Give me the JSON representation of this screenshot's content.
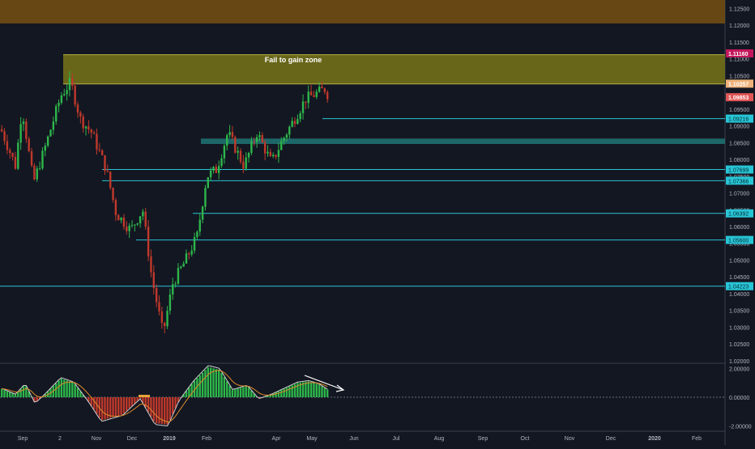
{
  "theme": {
    "background": "#131722",
    "up_color": "#2db74a",
    "down_color": "#c0392b",
    "zone_top_color": "#6b4a14",
    "zone_fail_color": "#6d6a19",
    "support_band_color": "#1d6b6e",
    "hline_color": "#27c5d6",
    "macd_line_color": "#d0d0d0",
    "signal_line_color": "#e08a2a"
  },
  "chart_data": [
    {
      "type": "candlestick",
      "title": "",
      "x_ticks": [
        "Sep",
        "2",
        "Nov",
        "Dec",
        "2019",
        "Feb",
        "Apr",
        "May",
        "Jun",
        "Jul",
        "Aug",
        "Sep",
        "Oct",
        "Nov",
        "Dec",
        "2020",
        "Feb"
      ],
      "y_ticks": [
        "1.12500",
        "1.12000",
        "1.11500",
        "1.11000",
        "1.10500",
        "1.09500",
        "1.09000",
        "1.08500",
        "1.08000",
        "1.07500",
        "1.07000",
        "1.06500",
        "1.06000",
        "1.05500",
        "1.05000",
        "1.04500",
        "1.04000",
        "1.03500",
        "1.03000",
        "1.02500",
        "1.02000"
      ],
      "ylim": [
        1.0195,
        1.1275
      ],
      "zones": [
        {
          "id": "top",
          "y_from": 1.1205,
          "y_to": 1.1275,
          "label": ""
        },
        {
          "id": "fail",
          "y_from": 1.1025,
          "y_to": 1.1112,
          "label": "Fail to gain zone"
        },
        {
          "id": "support",
          "y_from": 1.0846,
          "y_to": 1.0862,
          "label": ""
        }
      ],
      "levels": [
        {
          "value": 1.09216,
          "label": "1.09216"
        },
        {
          "value": 1.07699,
          "label": "1.07699"
        },
        {
          "value": 1.07366,
          "label": "1.07366"
        },
        {
          "value": 1.06392,
          "label": "1.06392"
        },
        {
          "value": 1.056,
          "label": "1.05600"
        },
        {
          "value": 1.04223,
          "label": "1.04223"
        }
      ],
      "price_tags": [
        {
          "value": 1.1116,
          "label": "1.11160",
          "color": "#c2185b"
        },
        {
          "value": 1.10257,
          "label": "1.10257",
          "color": "#f0b27a"
        },
        {
          "value": 1.09853,
          "label": "1.09853",
          "color": "#e05555"
        }
      ],
      "annotations": [
        {
          "text": "Fail to gain zone"
        }
      ]
    },
    {
      "type": "histogram",
      "title": "",
      "y_ticks": [
        "2.00000",
        "0.00000",
        "-2.00000"
      ],
      "ylim": [
        -2.3,
        2.3
      ],
      "annotations": [
        {
          "type": "arrow",
          "meaning": "declining momentum"
        }
      ]
    }
  ]
}
